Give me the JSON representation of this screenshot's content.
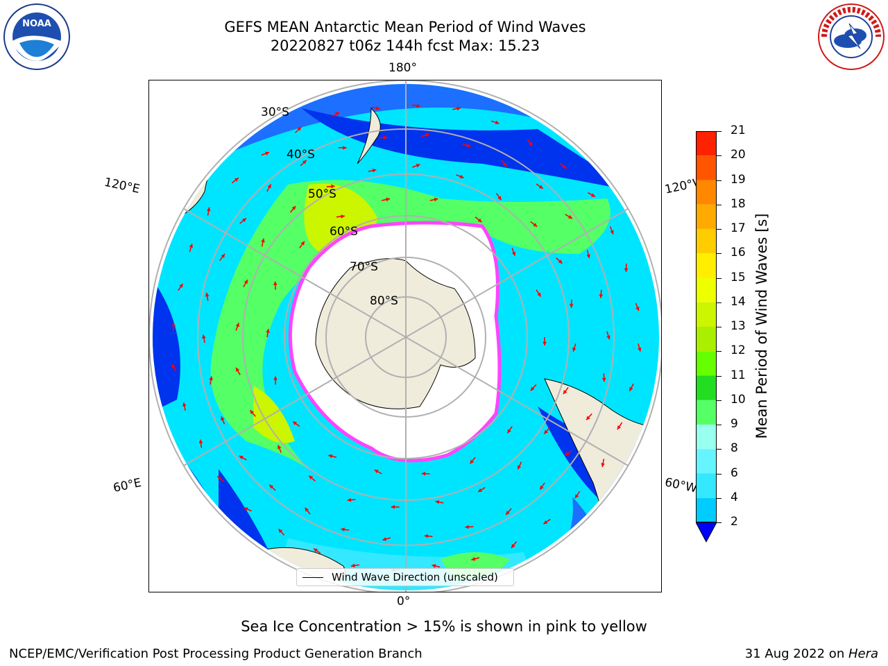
{
  "title": {
    "line1": "GEFS MEAN Antarctic Mean Period of Wind Waves",
    "line2": "20220827 t06z 144h fcst   Max: 15.23"
  },
  "map": {
    "projection": "south-polar-stereographic",
    "longitude_labels": {
      "top": "180°",
      "bottom": "0°",
      "left_upper": "120°E",
      "left_lower": "60°E",
      "right_upper": "120°W",
      "right_lower": "60°W"
    },
    "latitude_labels": [
      "30°S",
      "40°S",
      "50°S",
      "60°S",
      "70°S",
      "80°S"
    ],
    "colors": {
      "land": "#efecdc",
      "ocean_low": "#0033ff",
      "ocean_mid": "#00e5ff",
      "ocean_high": "#55ff55",
      "peak": "#ffff00",
      "ice_edge": "#ff44ff",
      "arrows": "#ff0000",
      "grid": "#b0b0b0"
    }
  },
  "legend": {
    "label": "Wind Wave Direction (unscaled)"
  },
  "colorbar": {
    "title": "Mean Period of Wind Waves [s]",
    "ticks": [
      "2",
      "4",
      "6",
      "8",
      "9",
      "10",
      "11",
      "12",
      "13",
      "14",
      "15",
      "16",
      "17",
      "18",
      "19",
      "20",
      "21"
    ],
    "colors": [
      "#0b4cff",
      "#00ccff",
      "#33e8ff",
      "#66f4ff",
      "#99ffee",
      "#55ff66",
      "#22dd22",
      "#66ff00",
      "#aaee00",
      "#ccf500",
      "#eeff00",
      "#ffee00",
      "#ffcc00",
      "#ffaa00",
      "#ff8800",
      "#ff5500",
      "#ff2200"
    ],
    "extend_color": "#0000ff"
  },
  "caption": "Sea Ice Concentration > 15% is shown in pink to yellow",
  "footer": {
    "left": "NCEP/EMC/Verification Post Processing Product Generation Branch",
    "right_date": "31 Aug 2022 on ",
    "right_host": "Hera"
  },
  "logos": {
    "noaa": "NOAA",
    "nws": "NATIONAL WEATHER SERVICE"
  }
}
